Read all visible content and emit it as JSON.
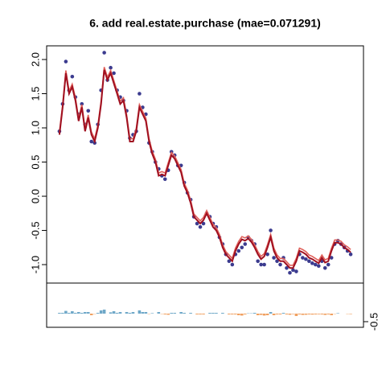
{
  "chart_data": {
    "type": "fit",
    "title": "6. add real.estate.purchase (mae=0.071291)",
    "x": [
      1,
      2,
      3,
      4,
      5,
      6,
      7,
      8,
      9,
      10,
      11,
      12,
      13,
      14,
      15,
      16,
      17,
      18,
      19,
      20,
      21,
      22,
      23,
      24,
      25,
      26,
      27,
      28,
      29,
      30,
      31,
      32,
      33,
      34,
      35,
      36,
      37,
      38,
      39,
      40,
      41,
      42,
      43,
      44,
      45,
      46,
      47,
      48,
      49,
      50,
      51,
      52,
      53,
      54,
      55,
      56,
      57,
      58,
      59,
      60,
      61,
      62,
      63,
      64,
      65,
      66,
      67,
      68,
      69,
      70,
      71,
      72,
      73,
      74,
      75,
      76,
      77,
      78,
      79,
      80,
      81,
      82,
      83,
      84,
      85,
      86,
      87,
      88,
      89,
      90,
      91,
      92
    ],
    "xlim": [
      -3,
      96
    ],
    "ylim": [
      -1.27,
      2.2
    ],
    "yticks": [
      {
        "value": -1,
        "label": "-1.0"
      },
      -0.5,
      {
        "value": 0,
        "label": "0.0"
      },
      0.5,
      {
        "value": 1,
        "label": "1.0"
      },
      1.5,
      {
        "value": 2,
        "label": "2.0"
      }
    ],
    "points": {
      "color": "#3b3b8f",
      "values": [
        0.95,
        1.35,
        1.97,
        1.55,
        1.75,
        1.45,
        1.2,
        1.35,
        1.05,
        1.25,
        0.8,
        0.78,
        1.05,
        1.55,
        2.1,
        1.7,
        1.88,
        1.8,
        1.55,
        1.45,
        1.4,
        1.25,
        0.85,
        0.9,
        0.95,
        1.5,
        1.3,
        1.2,
        0.78,
        0.65,
        0.5,
        0.4,
        0.3,
        0.25,
        0.38,
        0.65,
        0.6,
        0.45,
        0.45,
        0.2,
        0.05,
        -0.05,
        -0.3,
        -0.4,
        -0.45,
        -0.4,
        -0.25,
        -0.3,
        -0.4,
        -0.45,
        -0.6,
        -0.7,
        -0.85,
        -0.95,
        -1.0,
        -0.85,
        -0.8,
        -0.75,
        -0.7,
        -0.6,
        -0.65,
        -0.7,
        -0.95,
        -1.0,
        -1.0,
        -0.85,
        -0.5,
        -0.9,
        -0.95,
        -1.0,
        -0.9,
        -1.05,
        -1.12,
        -1.08,
        -1.1,
        -0.85,
        -0.9,
        -0.92,
        -0.95,
        -0.98,
        -1.0,
        -1.02,
        -0.95,
        -1.05,
        -1.0,
        -0.9,
        -0.7,
        -0.65,
        -0.7,
        -0.75,
        -0.8,
        -0.85
      ]
    },
    "series": [
      {
        "color": "#e0605a",
        "values": [
          0.94,
          1.34,
          1.84,
          1.54,
          1.64,
          1.44,
          1.14,
          1.34,
          0.99,
          1.19,
          0.94,
          0.84,
          1.04,
          1.39,
          1.89,
          1.74,
          1.84,
          1.69,
          1.54,
          1.39,
          1.44,
          1.19,
          0.84,
          0.84,
          0.99,
          1.34,
          1.24,
          1.14,
          0.84,
          0.66,
          0.54,
          0.34,
          0.36,
          0.34,
          0.49,
          0.64,
          0.59,
          0.49,
          0.39,
          0.19,
          0.09,
          -0.06,
          -0.26,
          -0.31,
          -0.36,
          -0.31,
          -0.21,
          -0.31,
          -0.41,
          -0.46,
          -0.56,
          -0.71,
          -0.81,
          -0.86,
          -0.91,
          -0.76,
          -0.66,
          -0.59,
          -0.61,
          -0.58,
          -0.63,
          -0.71,
          -0.81,
          -0.88,
          -0.84,
          -0.71,
          -0.56,
          -0.76,
          -0.86,
          -0.91,
          -0.91,
          -0.96,
          -1.01,
          -1.01,
          -0.91,
          -0.76,
          -0.78,
          -0.81,
          -0.86,
          -0.88,
          -0.91,
          -0.94,
          -0.86,
          -0.93,
          -0.91,
          -0.76,
          -0.64,
          -0.64,
          -0.66,
          -0.71,
          -0.74,
          -0.78
        ]
      },
      {
        "color": "#a01020",
        "values": [
          0.9,
          1.3,
          1.8,
          1.5,
          1.6,
          1.4,
          1.1,
          1.3,
          0.95,
          1.15,
          0.9,
          0.8,
          1.0,
          1.35,
          1.85,
          1.7,
          1.8,
          1.65,
          1.5,
          1.35,
          1.4,
          1.15,
          0.8,
          0.8,
          0.95,
          1.3,
          1.2,
          1.1,
          0.8,
          0.62,
          0.5,
          0.3,
          0.32,
          0.3,
          0.45,
          0.6,
          0.55,
          0.45,
          0.35,
          0.15,
          0.05,
          -0.1,
          -0.3,
          -0.35,
          -0.4,
          -0.35,
          -0.25,
          -0.35,
          -0.45,
          -0.5,
          -0.6,
          -0.75,
          -0.85,
          -0.9,
          -0.95,
          -0.8,
          -0.7,
          -0.63,
          -0.65,
          -0.62,
          -0.67,
          -0.75,
          -0.85,
          -0.92,
          -0.88,
          -0.75,
          -0.6,
          -0.8,
          -0.9,
          -0.95,
          -0.95,
          -1.0,
          -1.05,
          -1.05,
          -0.95,
          -0.8,
          -0.82,
          -0.85,
          -0.9,
          -0.92,
          -0.95,
          -0.98,
          -0.9,
          -0.97,
          -0.95,
          -0.8,
          -0.68,
          -0.68,
          -0.7,
          -0.75,
          -0.78,
          -0.82
        ]
      }
    ],
    "residuals": {
      "positive_color": "#6fa8c8",
      "negative_color": "#f0a060",
      "values": [
        0.05,
        0.05,
        0.17,
        0.05,
        0.15,
        0.05,
        0.1,
        0.05,
        0.1,
        0.1,
        -0.1,
        -0.02,
        0.05,
        0.2,
        0.25,
        0,
        0.08,
        0.15,
        0.05,
        0.1,
        0,
        0.1,
        0.05,
        0.1,
        0,
        0.2,
        0.1,
        0.1,
        -0.02,
        0.03,
        0,
        0.1,
        -0.02,
        -0.05,
        -0.07,
        0.05,
        0.05,
        0,
        0.1,
        0.05,
        0,
        0.05,
        0,
        -0.05,
        -0.05,
        -0.05,
        0,
        0.05,
        0.05,
        0.05,
        0,
        0.05,
        0,
        -0.05,
        -0.05,
        -0.05,
        -0.1,
        -0.12,
        -0.05,
        0.02,
        0.02,
        0.05,
        -0.1,
        -0.08,
        -0.12,
        -0.1,
        0.1,
        -0.1,
        -0.05,
        -0.05,
        0.05,
        -0.05,
        -0.07,
        -0.03,
        -0.15,
        -0.05,
        -0.08,
        -0.07,
        -0.05,
        -0.06,
        -0.05,
        -0.04,
        -0.05,
        -0.08,
        -0.05,
        -0.1,
        -0.02,
        0.03,
        0,
        0,
        -0.02,
        -0.03
      ],
      "ylim": [
        -0.85,
        1.9
      ],
      "yticks": [
        -0.5
      ]
    }
  }
}
